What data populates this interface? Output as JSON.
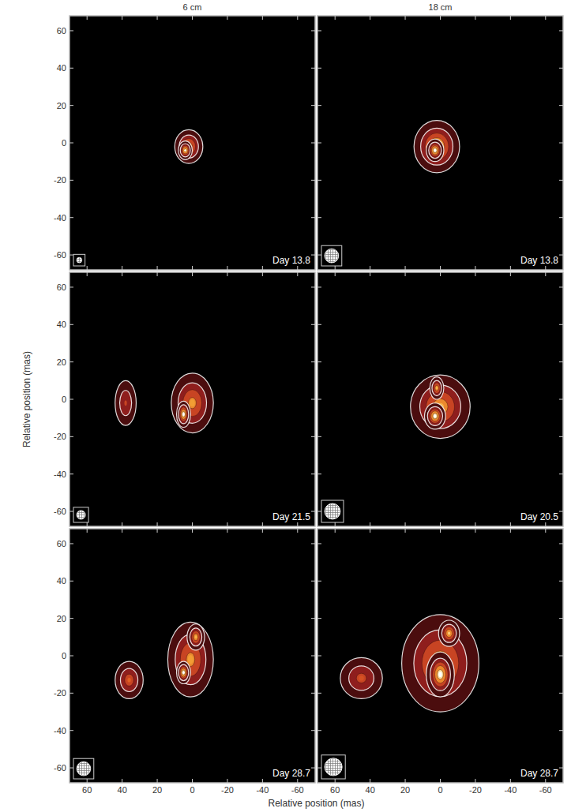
{
  "column_titles": [
    "6 cm",
    "18 cm"
  ],
  "x_label": "Relative position (mas)",
  "y_label": "Relative position (mas)",
  "xlim": [
    70,
    -70
  ],
  "ylim": [
    -68,
    68
  ],
  "xticks": [
    60,
    40,
    20,
    0,
    -20,
    -40,
    -60
  ],
  "yticks": [
    -60,
    -40,
    -20,
    0,
    20,
    40,
    60
  ],
  "levels": [
    0.1,
    0.3,
    0.5,
    0.7,
    0.9
  ],
  "chart_data": [
    {
      "type": "image",
      "annotation": "Day 13.8",
      "beam": 3,
      "tick_labels": "y",
      "components": [
        {
          "x": 2,
          "y": -2,
          "rx": 8,
          "ry": 9,
          "peak": 0.8
        },
        {
          "x": 4,
          "y": -4,
          "rx": 4,
          "ry": 5,
          "peak": 0.95
        }
      ]
    },
    {
      "type": "image",
      "annotation": "Day 13.8",
      "beam": 8,
      "tick_labels": false,
      "components": [
        {
          "x": 2,
          "y": -2,
          "rx": 13,
          "ry": 14,
          "peak": 0.9
        },
        {
          "x": 3,
          "y": -4,
          "rx": 5,
          "ry": 6,
          "peak": 1.0
        }
      ]
    },
    {
      "type": "image",
      "annotation": "Day 21.5",
      "beam": 5,
      "tick_labels": "y",
      "components": [
        {
          "x": 38,
          "y": -2,
          "rx": 6,
          "ry": 12,
          "peak": 0.5
        },
        {
          "x": 0,
          "y": -2,
          "rx": 12,
          "ry": 16,
          "peak": 0.75
        },
        {
          "x": 5,
          "y": -8,
          "rx": 4,
          "ry": 7,
          "peak": 1.0
        }
      ]
    },
    {
      "type": "image",
      "annotation": "Day 20.5",
      "beam": 9,
      "tick_labels": false,
      "components": [
        {
          "x": 0,
          "y": -4,
          "rx": 17,
          "ry": 17,
          "peak": 0.8
        },
        {
          "x": 2,
          "y": 6,
          "rx": 4,
          "ry": 6,
          "peak": 0.8
        },
        {
          "x": 3,
          "y": -9,
          "rx": 6,
          "ry": 7,
          "peak": 1.0
        }
      ]
    },
    {
      "type": "image",
      "annotation": "Day 28.7",
      "beam": 8,
      "tick_labels": true,
      "components": [
        {
          "x": 36,
          "y": -13,
          "rx": 8,
          "ry": 10,
          "peak": 0.6
        },
        {
          "x": 1,
          "y": -2,
          "rx": 13,
          "ry": 20,
          "peak": 0.75
        },
        {
          "x": -2,
          "y": 10,
          "rx": 5,
          "ry": 7,
          "peak": 0.8
        },
        {
          "x": 5,
          "y": -9,
          "rx": 4,
          "ry": 6,
          "peak": 1.0
        }
      ]
    },
    {
      "type": "image",
      "annotation": "Day 28.7",
      "beam": 10,
      "tick_labels": "x",
      "components": [
        {
          "x": 45,
          "y": -12,
          "rx": 12,
          "ry": 11,
          "peak": 0.55
        },
        {
          "x": 0,
          "y": -4,
          "rx": 22,
          "ry": 26,
          "peak": 0.8
        },
        {
          "x": -5,
          "y": 12,
          "rx": 6,
          "ry": 7,
          "peak": 0.85
        },
        {
          "x": 0,
          "y": -10,
          "rx": 8,
          "ry": 12,
          "peak": 1.0
        }
      ]
    }
  ]
}
